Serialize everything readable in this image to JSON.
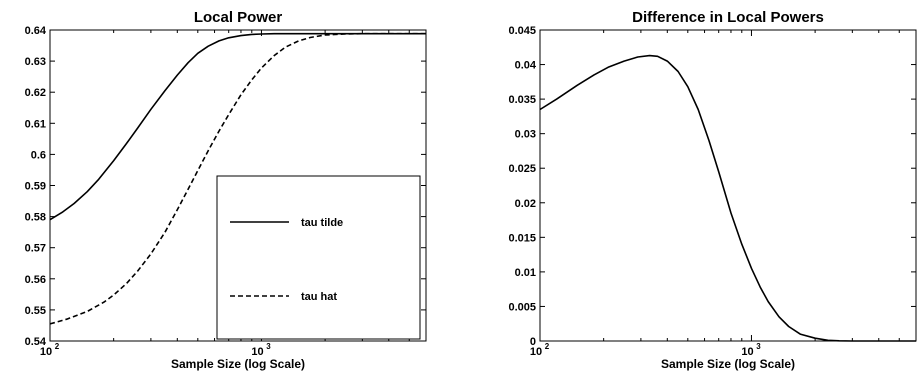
{
  "chart_data": [
    {
      "type": "line",
      "title": "Local Power",
      "xlabel": "Sample Size (log Scale)",
      "ylabel": "",
      "xscale": "log",
      "xlim": [
        100,
        6000
      ],
      "ylim": [
        0.54,
        0.64
      ],
      "xticks": [
        {
          "value": 100,
          "base": "10",
          "exp": "2"
        },
        {
          "value": 1000,
          "base": "10",
          "exp": "3"
        }
      ],
      "yticks": [
        0.54,
        0.55,
        0.56,
        0.57,
        0.58,
        0.59,
        0.6,
        0.61,
        0.62,
        0.63,
        0.64
      ],
      "ytick_labels": [
        "0.54",
        "0.55",
        "0.56",
        "0.57",
        "0.58",
        "0.59",
        "0.6",
        "0.61",
        "0.62",
        "0.63",
        "0.64"
      ],
      "grid": false,
      "legend": "bottom-right",
      "series": [
        {
          "name": "tau tilde",
          "style": "solid",
          "x": [
            100,
            115,
            130,
            150,
            170,
            200,
            230,
            260,
            300,
            350,
            400,
            450,
            500,
            560,
            630,
            700,
            800,
            900,
            1000,
            1150,
            1300,
            1500,
            1800,
            2200,
            3000,
            4000,
            6000
          ],
          "y": [
            0.579,
            0.5815,
            0.5842,
            0.588,
            0.592,
            0.598,
            0.6035,
            0.6085,
            0.6145,
            0.6205,
            0.6255,
            0.6295,
            0.6325,
            0.6348,
            0.6365,
            0.6375,
            0.6382,
            0.6386,
            0.6387,
            0.6388,
            0.6388,
            0.6388,
            0.6388,
            0.6388,
            0.6388,
            0.6388,
            0.6388
          ]
        },
        {
          "name": "tau hat",
          "style": "dashed",
          "x": [
            100,
            120,
            150,
            180,
            200,
            230,
            260,
            300,
            350,
            400,
            450,
            500,
            560,
            630,
            700,
            800,
            900,
            1000,
            1150,
            1300,
            1500,
            1700,
            2000,
            2500,
            3000,
            4000,
            6000
          ],
          "y": [
            0.5455,
            0.547,
            0.5495,
            0.5525,
            0.5548,
            0.5585,
            0.5625,
            0.568,
            0.575,
            0.5822,
            0.5888,
            0.5948,
            0.6012,
            0.6075,
            0.6128,
            0.6192,
            0.624,
            0.6278,
            0.6318,
            0.6345,
            0.6365,
            0.6376,
            0.6384,
            0.6387,
            0.6388,
            0.6388,
            0.6388
          ]
        }
      ]
    },
    {
      "type": "line",
      "title": "Difference in Local Powers",
      "xlabel": "Sample Size (log Scale)",
      "ylabel": "",
      "xscale": "log",
      "xlim": [
        100,
        6000
      ],
      "ylim": [
        0,
        0.045
      ],
      "xticks": [
        {
          "value": 100,
          "base": "10",
          "exp": "2"
        },
        {
          "value": 1000,
          "base": "10",
          "exp": "3"
        }
      ],
      "yticks": [
        0,
        0.005,
        0.01,
        0.015,
        0.02,
        0.025,
        0.03,
        0.035,
        0.04,
        0.045
      ],
      "ytick_labels": [
        "0",
        "0.005",
        "0.01",
        "0.015",
        "0.02",
        "0.025",
        "0.03",
        "0.035",
        "0.04",
        "0.045"
      ],
      "grid": false,
      "legend": "none",
      "series": [
        {
          "style": "solid",
          "x": [
            100,
            120,
            150,
            180,
            210,
            250,
            290,
            330,
            360,
            400,
            450,
            500,
            560,
            630,
            700,
            800,
            900,
            1000,
            1100,
            1200,
            1350,
            1500,
            1700,
            2000,
            2300,
            2600,
            3000,
            4000,
            6000
          ],
          "y": [
            0.0335,
            0.035,
            0.037,
            0.0385,
            0.0396,
            0.0405,
            0.0411,
            0.0413,
            0.0412,
            0.0405,
            0.039,
            0.0368,
            0.0335,
            0.029,
            0.0245,
            0.0185,
            0.014,
            0.0105,
            0.0078,
            0.0057,
            0.0035,
            0.0021,
            0.001,
            0.0004,
            0.0001,
            3e-05,
            0,
            0,
            0
          ]
        }
      ]
    }
  ]
}
